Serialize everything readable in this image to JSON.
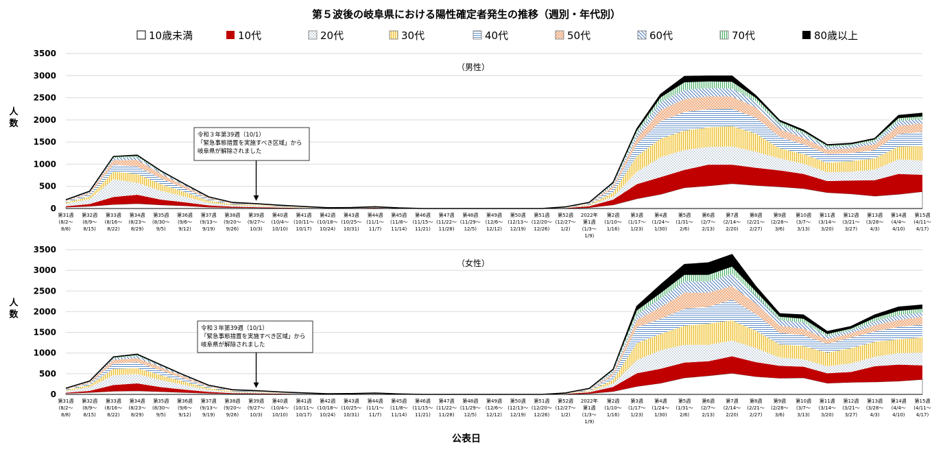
{
  "chart_data": {
    "type": "area",
    "title": "第５波後の岐阜県における陽性確定者発生の推移（週別・年代別）",
    "xlabel": "公表日",
    "ylabel": "人数",
    "ylim": [
      0,
      3500
    ],
    "yticks": [
      0,
      500,
      1000,
      1500,
      2000,
      2500,
      3000,
      3500
    ],
    "grid": true,
    "legend_position": "top",
    "series_names": [
      "10歳未満",
      "10代",
      "20代",
      "30代",
      "40代",
      "50代",
      "60代",
      "70代",
      "80歳以上"
    ],
    "series_styles": [
      {
        "fill": "#ffffff",
        "pattern": "none"
      },
      {
        "fill": "#c00000",
        "pattern": "none"
      },
      {
        "fill": "#ffffff",
        "pattern": "dots",
        "color": "#8aa0b8"
      },
      {
        "fill": "#fff2c0",
        "pattern": "vlines",
        "color": "#e8b838"
      },
      {
        "fill": "#ffffff",
        "pattern": "hlines",
        "color": "#5b8cc8"
      },
      {
        "fill": "#fbe0cc",
        "pattern": "dots",
        "color": "#e07a3a"
      },
      {
        "fill": "#ffffff",
        "pattern": "dlines",
        "color": "#4a78b8"
      },
      {
        "fill": "#e6f6ea",
        "pattern": "vlines",
        "color": "#4cae6a"
      },
      {
        "fill": "#000000",
        "pattern": "none"
      }
    ],
    "categories": [
      [
        "第31週",
        "(8/2～",
        "8/8)"
      ],
      [
        "第32週",
        "(8/9～",
        "8/15)"
      ],
      [
        "第33週",
        "(8/16～",
        "8/22)"
      ],
      [
        "第34週",
        "(8/23～",
        "8/29)"
      ],
      [
        "第35週",
        "(8/30～",
        "9/5)"
      ],
      [
        "第36週",
        "(9/6～",
        "9/12)"
      ],
      [
        "第37週",
        "(9/13～",
        "9/19)"
      ],
      [
        "第38週",
        "(9/20～",
        "9/26)"
      ],
      [
        "第39週",
        "(9/27～",
        "10/3)"
      ],
      [
        "第40週",
        "(10/4～",
        "10/10)"
      ],
      [
        "第41週",
        "(10/11～",
        "10/17)"
      ],
      [
        "第42週",
        "(10/18～",
        "10/24)"
      ],
      [
        "第43週",
        "(10/25～",
        "10/31)"
      ],
      [
        "第44週",
        "(11/1～",
        "11/7)"
      ],
      [
        "第45週",
        "(11/8～",
        "11/14)"
      ],
      [
        "第46週",
        "(11/15～",
        "11/21)"
      ],
      [
        "第47週",
        "(11/22～",
        "11/28)"
      ],
      [
        "第48週",
        "(11/29～",
        "12/5)"
      ],
      [
        "第49週",
        "(12/6～",
        "12/12)"
      ],
      [
        "第50週",
        "(12/13～",
        "12/19)"
      ],
      [
        "第51週",
        "(12/20～",
        "12/26)"
      ],
      [
        "第52週",
        "(12/27～",
        "1/2)"
      ],
      [
        "2022年",
        "第1週",
        "(1/3～",
        "1/9)"
      ],
      [
        "第2週",
        "(1/10～",
        "1/16)"
      ],
      [
        "第3週",
        "(1/17～",
        "1/23)"
      ],
      [
        "第4週",
        "(1/24～",
        "1/30)"
      ],
      [
        "第5週",
        "(1/31～",
        "2/6)"
      ],
      [
        "第6週",
        "(2/7～",
        "2/13)"
      ],
      [
        "第7週",
        "(2/14～",
        "2/20)"
      ],
      [
        "第8週",
        "(2/21～",
        "2/27)"
      ],
      [
        "第9週",
        "(2/28～",
        "3/6)"
      ],
      [
        "第10週",
        "(3/7～",
        "3/13)"
      ],
      [
        "第11週",
        "(3/14～",
        "3/20)"
      ],
      [
        "第12週",
        "(3/21～",
        "3/27)"
      ],
      [
        "第13週",
        "(3/28～",
        "4/3)"
      ],
      [
        "第14週",
        "(4/4～",
        "4/10)"
      ],
      [
        "第15週",
        "(4/11～",
        "4/17)"
      ]
    ],
    "panels": [
      {
        "name": "（男性）",
        "annotation": [
          "令和３年第39週（10/1）",
          "「緊急事態措置を実施すべき区域」から",
          "岐阜県が解除されました"
        ],
        "annotation_week": "第39週",
        "series": [
          {
            "name": "10歳未満",
            "values": [
              30,
              50,
              90,
              110,
              80,
              60,
              30,
              20,
              15,
              10,
              5,
              3,
              5,
              10,
              3,
              0,
              0,
              0,
              0,
              0,
              0,
              5,
              20,
              80,
              220,
              320,
              470,
              510,
              560,
              520,
              490,
              450,
              360,
              330,
              280,
              320,
              380
            ]
          },
          {
            "name": "10代",
            "values": [
              20,
              50,
              170,
              200,
              120,
              80,
              40,
              20,
              15,
              10,
              5,
              2,
              3,
              5,
              2,
              0,
              0,
              0,
              0,
              0,
              0,
              5,
              30,
              120,
              330,
              390,
              400,
              480,
              430,
              400,
              370,
              330,
              260,
              300,
              360,
              460,
              380
            ]
          },
          {
            "name": "20代",
            "values": [
              60,
              110,
              400,
              270,
              200,
              130,
              60,
              30,
              25,
              15,
              10,
              4,
              4,
              8,
              3,
              0,
              0,
              0,
              0,
              0,
              0,
              5,
              20,
              70,
              280,
              450,
              450,
              400,
              410,
              360,
              270,
              230,
              200,
              200,
              240,
              330,
              320
            ]
          },
          {
            "name": "30代",
            "values": [
              30,
              60,
              170,
              200,
              150,
              100,
              50,
              25,
              20,
              15,
              8,
              3,
              3,
              5,
              2,
              0,
              0,
              0,
              0,
              0,
              0,
              5,
              20,
              90,
              350,
              420,
              440,
              440,
              460,
              410,
              230,
              220,
              210,
              240,
              250,
              290,
              330
            ]
          },
          {
            "name": "40代",
            "values": [
              25,
              50,
              160,
              170,
              130,
              80,
              40,
              20,
              15,
              10,
              6,
              2,
              3,
              5,
              2,
              0,
              0,
              0,
              0,
              0,
              0,
              5,
              20,
              90,
              280,
              390,
              420,
              410,
              390,
              360,
              260,
              220,
              200,
              180,
              190,
              280,
              320
            ]
          },
          {
            "name": "50代",
            "values": [
              15,
              35,
              100,
              150,
              100,
              60,
              25,
              12,
              10,
              8,
              5,
              2,
              2,
              3,
              1,
              0,
              0,
              0,
              0,
              0,
              0,
              5,
              10,
              60,
              130,
              250,
              290,
              290,
              280,
              230,
              170,
              150,
              100,
              110,
              130,
              190,
              190
            ]
          },
          {
            "name": "60代",
            "values": [
              8,
              20,
              50,
              60,
              40,
              25,
              10,
              6,
              5,
              4,
              3,
              1,
              1,
              2,
              1,
              0,
              0,
              0,
              0,
              0,
              0,
              3,
              10,
              40,
              110,
              190,
              210,
              190,
              180,
              140,
              110,
              100,
              60,
              60,
              70,
              110,
              100
            ]
          },
          {
            "name": "70代",
            "values": [
              5,
              10,
              25,
              30,
              20,
              12,
              5,
              3,
              3,
              2,
              2,
              1,
              1,
              1,
              0,
              0,
              0,
              0,
              0,
              0,
              0,
              2,
              5,
              20,
              60,
              100,
              170,
              150,
              150,
              80,
              60,
              40,
              30,
              30,
              40,
              60,
              60
            ]
          },
          {
            "name": "80歳以上",
            "values": [
              3,
              5,
              10,
              15,
              8,
              5,
              3,
              2,
              2,
              1,
              1,
              0,
              0,
              1,
              0,
              0,
              0,
              0,
              0,
              0,
              0,
              2,
              5,
              20,
              40,
              70,
              130,
              120,
              130,
              50,
              30,
              30,
              20,
              20,
              20,
              60,
              70
            ]
          }
        ]
      },
      {
        "name": "（女性）",
        "annotation": [
          "令和３年第39週（10/1）",
          "「緊急事態措置を実施すべき区域」から",
          "岐阜県が解除されました"
        ],
        "annotation_week": "第39週",
        "series": [
          {
            "name": "10歳未満",
            "values": [
              25,
              45,
              75,
              85,
              65,
              45,
              25,
              15,
              12,
              8,
              4,
              3,
              4,
              8,
              2,
              0,
              0,
              0,
              0,
              0,
              0,
              5,
              20,
              70,
              190,
              270,
              400,
              450,
              510,
              430,
              390,
              400,
              270,
              290,
              300,
              320,
              360
            ]
          },
          {
            "name": "10代",
            "values": [
              15,
              40,
              150,
              180,
              110,
              70,
              35,
              15,
              12,
              8,
              4,
              2,
              3,
              4,
              2,
              0,
              0,
              0,
              0,
              0,
              0,
              5,
              30,
              110,
              320,
              350,
              370,
              350,
              410,
              350,
              300,
              270,
              240,
              250,
              380,
              400,
              340
            ]
          },
          {
            "name": "20代",
            "values": [
              40,
              90,
              240,
              230,
              170,
              110,
              50,
              25,
              20,
              12,
              8,
              3,
              3,
              6,
              2,
              0,
              0,
              0,
              0,
              0,
              0,
              5,
              20,
              80,
              320,
              450,
              430,
              400,
              380,
              340,
              200,
              180,
              170,
              210,
              230,
              280,
              310
            ]
          },
          {
            "name": "30代",
            "values": [
              25,
              50,
              150,
              140,
              120,
              80,
              40,
              20,
              15,
              10,
              6,
              2,
              3,
              4,
              2,
              0,
              0,
              0,
              0,
              0,
              0,
              5,
              20,
              90,
              410,
              390,
              460,
              510,
              490,
              420,
              320,
              320,
              330,
              370,
              360,
              330,
              370
            ]
          },
          {
            "name": "40代",
            "values": [
              20,
              40,
              130,
              140,
              110,
              70,
              35,
              18,
              14,
              10,
              6,
              2,
              3,
              4,
              2,
              0,
              0,
              0,
              0,
              0,
              0,
              5,
              20,
              100,
              380,
              370,
              410,
              410,
              500,
              400,
              280,
              260,
              210,
              250,
              250,
              300,
              310
            ]
          },
          {
            "name": "50代",
            "values": [
              12,
              30,
              90,
              100,
              80,
              50,
              20,
              10,
              8,
              6,
              4,
              1,
              2,
              3,
              1,
              0,
              0,
              0,
              0,
              0,
              0,
              3,
              10,
              60,
              180,
              280,
              390,
              340,
              330,
              260,
              170,
              160,
              110,
              110,
              150,
              170,
              190
            ]
          },
          {
            "name": "60代",
            "values": [
              6,
              15,
              40,
              55,
              35,
              20,
              10,
              5,
              4,
              3,
              2,
              1,
              1,
              2,
              1,
              0,
              0,
              0,
              0,
              0,
              0,
              3,
              10,
              50,
              130,
              210,
              280,
              270,
              300,
              180,
              140,
              150,
              80,
              70,
              100,
              120,
              100
            ]
          },
          {
            "name": "70代",
            "values": [
              4,
              8,
              20,
              25,
              15,
              10,
              5,
              3,
              2,
              2,
              1,
              1,
              1,
              1,
              0,
              0,
              0,
              0,
              0,
              0,
              0,
              2,
              10,
              30,
              100,
              130,
              150,
              160,
              170,
              110,
              80,
              90,
              50,
              40,
              80,
              100,
              90
            ]
          },
          {
            "name": "80歳以上",
            "values": [
              3,
              5,
              10,
              15,
              8,
              5,
              3,
              2,
              2,
              1,
              1,
              0,
              0,
              1,
              0,
              0,
              0,
              0,
              0,
              0,
              0,
              2,
              5,
              15,
              100,
              200,
              250,
              290,
              290,
              120,
              70,
              90,
              60,
              50,
              70,
              90,
              90
            ]
          }
        ]
      }
    ]
  }
}
